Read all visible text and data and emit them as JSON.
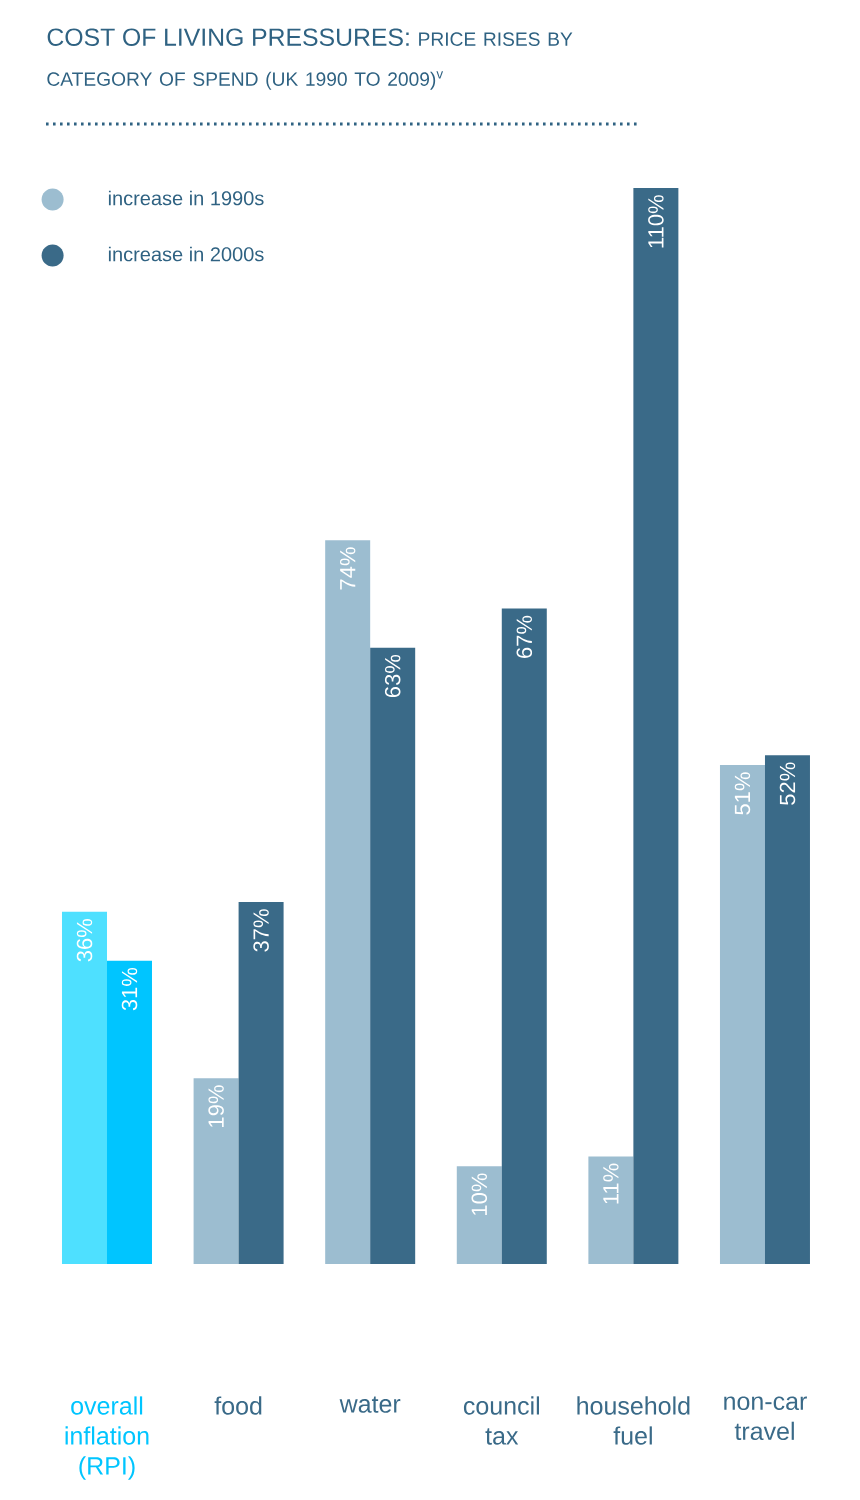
{
  "chart_data": {
    "type": "bar",
    "title": "COST OF LIVING PRESSURES:",
    "subtitle": "PRICE RISES BY CATEGORY OF SPEND (UK 1990 TO 2009)$^{v}$",
    "categories": [
      "overall inflation (RPI)",
      "food",
      "water",
      "council tax",
      "household fuel",
      "non-car travel"
    ],
    "series": [
      {
        "name": "increase in 1990s",
        "color": "#9cbdd0",
        "colors": [
          "#4ee0ff",
          "#9cbdd0",
          "#9cbdd0",
          "#9cbdd0",
          "#9cbdd0",
          "#9cbdd0"
        ],
        "values": [
          36,
          19,
          74,
          10,
          11,
          51
        ],
        "value_labels": [
          "36%",
          "19%",
          "74%",
          "10%",
          "11%",
          "51%"
        ]
      },
      {
        "name": "increase in 2000s",
        "color": "#3a6a88",
        "colors": [
          "#00c5ff",
          "#3a6a88",
          "#3a6a88",
          "#3a6a88",
          "#3a6a88",
          "#3a6a88"
        ],
        "values": [
          31,
          37,
          63,
          67,
          110,
          52
        ],
        "value_labels": [
          "31%",
          "37%",
          "63%",
          "67%",
          "110%",
          "52%"
        ]
      }
    ],
    "legend": "top left"
  }
}
